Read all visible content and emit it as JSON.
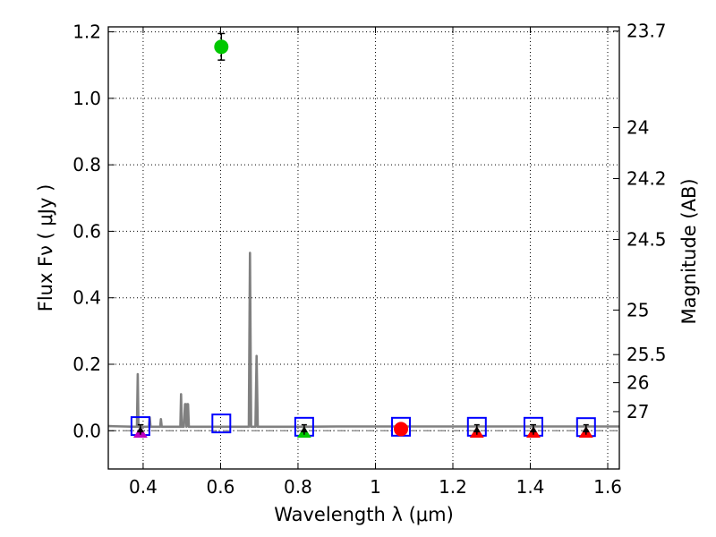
{
  "chart_data": {
    "type": "scatter",
    "title": "",
    "xlabel": "Wavelength  λ (μm)",
    "ylabel": "Flux  Fν  ( μJy )",
    "ylabel_right": "Magnitude (AB)",
    "xlim": [
      0.31,
      1.63
    ],
    "ylim": [
      -0.115,
      1.215
    ],
    "grid": true,
    "x_ticks": [
      0.4,
      0.6,
      0.8,
      1.0,
      1.2,
      1.4,
      1.6
    ],
    "x_tick_labels": [
      "0.4",
      "0.6",
      "0.8",
      "1",
      "1.2",
      "1.4",
      "1.6"
    ],
    "y_ticks": [
      0.0,
      0.2,
      0.4,
      0.6,
      0.8,
      1.0,
      1.2
    ],
    "y_tick_labels": [
      "0.0",
      "0.2",
      "0.4",
      "0.6",
      "0.8",
      "1.0",
      "1.2"
    ],
    "mag_ticks": [
      23.7,
      24,
      24.2,
      24.5,
      25,
      25.5,
      26,
      27
    ],
    "mag_tick_labels": [
      "23.7",
      "24",
      "24.2",
      "24.5",
      "25",
      "25.5",
      "26",
      "27"
    ],
    "baseline": 0.0,
    "model_spectrum": {
      "name": "model SED",
      "color": "#808080",
      "x": [
        0.31,
        0.35,
        0.38,
        0.384,
        0.386,
        0.388,
        0.392,
        0.4,
        0.41,
        0.415,
        0.417,
        0.419,
        0.425,
        0.44,
        0.444,
        0.446,
        0.448,
        0.46,
        0.48,
        0.496,
        0.498,
        0.5,
        0.502,
        0.505,
        0.508,
        0.51,
        0.512,
        0.514,
        0.516,
        0.518,
        0.52,
        0.55,
        0.6,
        0.65,
        0.67,
        0.673,
        0.676,
        0.679,
        0.682,
        0.685,
        0.69,
        0.693,
        0.696,
        0.7,
        0.75,
        0.8,
        0.9,
        1.0,
        1.1,
        1.2,
        1.3,
        1.4,
        1.5,
        1.63
      ],
      "y": [
        0.014,
        0.013,
        0.012,
        0.012,
        0.17,
        0.012,
        0.012,
        0.012,
        0.012,
        0.012,
        0.04,
        0.012,
        0.012,
        0.012,
        0.012,
        0.035,
        0.012,
        0.012,
        0.012,
        0.012,
        0.11,
        0.012,
        0.012,
        0.012,
        0.08,
        0.08,
        0.012,
        0.08,
        0.08,
        0.012,
        0.012,
        0.012,
        0.012,
        0.012,
        0.012,
        0.012,
        0.535,
        0.012,
        0.012,
        0.012,
        0.012,
        0.225,
        0.012,
        0.012,
        0.012,
        0.012,
        0.013,
        0.013,
        0.013,
        0.013,
        0.013,
        0.013,
        0.013,
        0.013
      ]
    },
    "model_band_boxes": {
      "name": "model band flux",
      "color": "#0000ff",
      "x": [
        0.393,
        0.602,
        0.816,
        1.066,
        1.262,
        1.408,
        1.544
      ],
      "y": [
        0.014,
        0.022,
        0.012,
        0.012,
        0.012,
        0.012,
        0.011
      ]
    },
    "observed_points": {
      "name": "observed photometry",
      "x": [
        0.393,
        0.602,
        0.816,
        1.066,
        1.262,
        1.408,
        1.544
      ],
      "y": [
        -0.008,
        1.155,
        -0.008,
        0.005,
        -0.008,
        -0.008,
        -0.008
      ],
      "err": [
        0.0,
        0.04,
        0.0,
        0.0,
        0.0,
        0.0,
        0.0
      ],
      "marker": [
        "triangle",
        "circle",
        "triangle",
        "circle",
        "triangle",
        "triangle",
        "triangle"
      ],
      "colors": [
        "#bf00bf",
        "#00c800",
        "#00c800",
        "#ff0000",
        "#ff0000",
        "#ff0000",
        "#ff0000"
      ]
    },
    "upper_limits": {
      "name": "upper limit markers",
      "color": "#000000",
      "x": [
        0.393,
        0.816,
        1.262,
        1.408,
        1.544
      ],
      "y": [
        0.003,
        0.003,
        0.003,
        0.003,
        0.003
      ],
      "err": [
        0.015,
        0.015,
        0.015,
        0.015,
        0.015
      ]
    },
    "colors": {
      "axes": "#000000",
      "grid": "#000000",
      "baseline": "#808080"
    }
  }
}
